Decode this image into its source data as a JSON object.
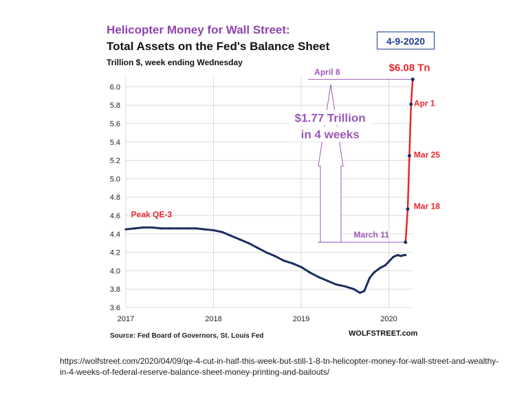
{
  "chart_data": {
    "type": "line",
    "title": "Helicopter Money for Wall Street:",
    "subtitle": "Total Assets on the Fed's Balance Sheet",
    "ylabel_note": "Trillion $, week ending Wednesday",
    "date_box": "4-9-2020",
    "ylim": [
      3.6,
      6.1
    ],
    "y_ticks": [
      3.6,
      3.8,
      4.0,
      4.2,
      4.4,
      4.6,
      4.8,
      5.0,
      5.2,
      5.4,
      5.6,
      5.8,
      6.0
    ],
    "y_tick_labels": [
      "3.6",
      "3.8",
      "4.0",
      "4.2",
      "4.4",
      "4.6",
      "4.8",
      "5.0",
      "5.2",
      "5.4",
      "5.6",
      "5.8",
      "6.0"
    ],
    "x_ticks": [
      2017,
      2018,
      2019,
      2020
    ],
    "x_tick_labels": [
      "2017",
      "2018",
      "2019",
      "2020"
    ],
    "xlim": [
      2017.0,
      2020.27
    ],
    "grid": true,
    "series": [
      {
        "color": "#1c2e5e",
        "x": [
          2017.0,
          2017.1,
          2017.2,
          2017.3,
          2017.4,
          2017.5,
          2017.6,
          2017.7,
          2017.8,
          2017.9,
          2018.0,
          2018.1,
          2018.2,
          2018.3,
          2018.4,
          2018.5,
          2018.6,
          2018.7,
          2018.8,
          2018.9,
          2019.0,
          2019.1,
          2019.2,
          2019.3,
          2019.4,
          2019.5,
          2019.6,
          2019.67,
          2019.72,
          2019.78,
          2019.83,
          2019.9,
          2019.96,
          2020.0,
          2020.05,
          2020.1,
          2020.14,
          2020.17,
          2020.19
        ],
        "y": [
          4.45,
          4.46,
          4.47,
          4.47,
          4.46,
          4.46,
          4.46,
          4.46,
          4.46,
          4.45,
          4.44,
          4.42,
          4.38,
          4.34,
          4.3,
          4.25,
          4.2,
          4.16,
          4.11,
          4.08,
          4.04,
          3.98,
          3.93,
          3.89,
          3.85,
          3.83,
          3.8,
          3.76,
          3.78,
          3.92,
          3.98,
          4.03,
          4.06,
          4.1,
          4.15,
          4.17,
          4.16,
          4.17,
          4.17
        ]
      },
      {
        "color": "#e8262b",
        "x": [
          2020.19,
          2020.215,
          2020.234,
          2020.253,
          2020.272
        ],
        "y": [
          4.31,
          4.67,
          5.25,
          5.81,
          6.08
        ]
      }
    ],
    "annotations": [
      {
        "text": "Peak QE-3",
        "x": 2017.06,
        "y": 4.58,
        "color": "#e8262b"
      },
      {
        "text": "$6.08 Tn",
        "x": 2020.0,
        "y": 6.17,
        "color": "#e8262b"
      },
      {
        "text": "Apr 1",
        "x": 2020.285,
        "y": 5.79,
        "color": "#e8262b"
      },
      {
        "text": "Mar 25",
        "x": 2020.285,
        "y": 5.23,
        "color": "#e8262b"
      },
      {
        "text": "Mar 18",
        "x": 2020.285,
        "y": 4.67,
        "color": "#e8262b"
      },
      {
        "text": "April 8",
        "x": 2019.15,
        "y": 6.13,
        "color": "#9b59b6"
      },
      {
        "text": "March 11",
        "x": 2019.6,
        "y": 4.36,
        "color": "#9b59b6"
      },
      {
        "text": "$1.77 Trillion",
        "x": 2019.33,
        "y": 5.62,
        "color": "#9b59b6"
      },
      {
        "text": "in 4 weeks",
        "x": 2019.33,
        "y": 5.44,
        "color": "#9b59b6"
      }
    ],
    "source": "Source: Fed Board of Governors, St. Louis Fed",
    "brand": "WOLFSTREET.com"
  },
  "footer_url": "https://wolfstreet.com/2020/04/09/qe-4-cut-in-half-this-week-but-still-1-8-tn-helicopter-money-for-wall-street-and-wealthy-in-4-weeks-of-federal-reserve-balance-sheet-money-printing-and-bailouts/",
  "colors": {
    "title_purple": "#8e44ad",
    "accent_red": "#e8262b",
    "line_navy": "#1c2e5e",
    "annotation_purple": "#9b59b6",
    "box_blue": "#1f3b8f"
  }
}
